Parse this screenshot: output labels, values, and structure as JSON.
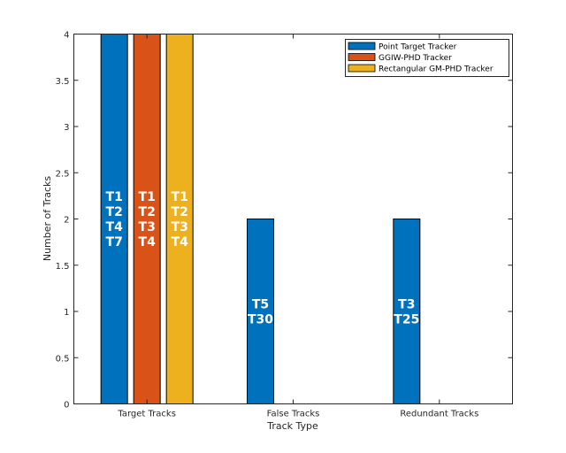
{
  "chart_data": {
    "type": "bar",
    "title": "",
    "xlabel": "Track Type",
    "ylabel": "Number of Tracks",
    "categories": [
      "Target Tracks",
      "False Tracks",
      "Redundant Tracks"
    ],
    "ylim": [
      0,
      4
    ],
    "yticks": [
      0,
      0.5,
      1,
      1.5,
      2,
      2.5,
      3,
      3.5,
      4
    ],
    "ytick_labels": [
      "0",
      "0.5",
      "1",
      "1.5",
      "2",
      "2.5",
      "3",
      "3.5",
      "4"
    ],
    "grid": false,
    "legend_position": "top-right",
    "series": [
      {
        "name": "Point Target Tracker",
        "color": "#0072BD",
        "values": [
          4,
          2,
          2
        ],
        "labels": [
          [
            "T1",
            "T2",
            "T4",
            "T7"
          ],
          [
            "T5",
            "T30"
          ],
          [
            "T3",
            "T25"
          ]
        ]
      },
      {
        "name": "GGIW-PHD Tracker",
        "color": "#D95319",
        "values": [
          4,
          0,
          0
        ],
        "labels": [
          [
            "T1",
            "T2",
            "T3",
            "T4"
          ],
          [],
          []
        ]
      },
      {
        "name": "Rectangular GM-PHD Tracker",
        "color": "#EDB120",
        "values": [
          4,
          0,
          0
        ],
        "labels": [
          [
            "T1",
            "T2",
            "T3",
            "T4"
          ],
          [],
          []
        ]
      }
    ]
  }
}
